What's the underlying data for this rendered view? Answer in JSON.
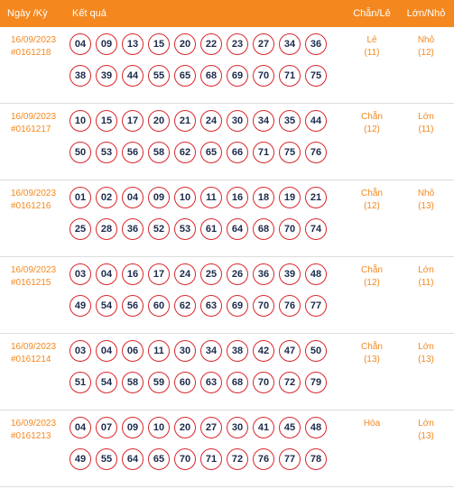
{
  "header": {
    "date_label": "Ngày /Kỳ",
    "result_label": "Kết quả",
    "chan_le_label": "Chẵn/Lẻ",
    "lon_nho_label": "Lớn/Nhỏ"
  },
  "rows": [
    {
      "date": "16/09/2023",
      "period": "#0161218",
      "numbers_top": [
        "04",
        "09",
        "13",
        "15",
        "20",
        "22",
        "23",
        "27",
        "34",
        "36"
      ],
      "numbers_bottom": [
        "38",
        "39",
        "44",
        "55",
        "65",
        "68",
        "69",
        "70",
        "71",
        "75"
      ],
      "chan_le": "Lẻ",
      "chan_le_count": "(11)",
      "lon_nho": "Nhỏ",
      "lon_nho_count": "(12)"
    },
    {
      "date": "16/09/2023",
      "period": "#0161217",
      "numbers_top": [
        "10",
        "15",
        "17",
        "20",
        "21",
        "24",
        "30",
        "34",
        "35",
        "44"
      ],
      "numbers_bottom": [
        "50",
        "53",
        "56",
        "58",
        "62",
        "65",
        "66",
        "71",
        "75",
        "76"
      ],
      "chan_le": "Chẵn",
      "chan_le_count": "(12)",
      "lon_nho": "Lớn",
      "lon_nho_count": "(11)"
    },
    {
      "date": "16/09/2023",
      "period": "#0161216",
      "numbers_top": [
        "01",
        "02",
        "04",
        "09",
        "10",
        "11",
        "16",
        "18",
        "19",
        "21"
      ],
      "numbers_bottom": [
        "25",
        "28",
        "36",
        "52",
        "53",
        "61",
        "64",
        "68",
        "70",
        "74"
      ],
      "chan_le": "Chẵn",
      "chan_le_count": "(12)",
      "lon_nho": "Nhỏ",
      "lon_nho_count": "(13)"
    },
    {
      "date": "16/09/2023",
      "period": "#0161215",
      "numbers_top": [
        "03",
        "04",
        "16",
        "17",
        "24",
        "25",
        "26",
        "36",
        "39",
        "48"
      ],
      "numbers_bottom": [
        "49",
        "54",
        "56",
        "60",
        "62",
        "63",
        "69",
        "70",
        "76",
        "77"
      ],
      "chan_le": "Chẵn",
      "chan_le_count": "(12)",
      "lon_nho": "Lớn",
      "lon_nho_count": "(11)"
    },
    {
      "date": "16/09/2023",
      "period": "#0161214",
      "numbers_top": [
        "03",
        "04",
        "06",
        "11",
        "30",
        "34",
        "38",
        "42",
        "47",
        "50"
      ],
      "numbers_bottom": [
        "51",
        "54",
        "58",
        "59",
        "60",
        "63",
        "68",
        "70",
        "72",
        "79"
      ],
      "chan_le": "Chẵn",
      "chan_le_count": "(13)",
      "lon_nho": "Lớn",
      "lon_nho_count": "(13)"
    },
    {
      "date": "16/09/2023",
      "period": "#0161213",
      "numbers_top": [
        "04",
        "07",
        "09",
        "10",
        "20",
        "27",
        "30",
        "41",
        "45",
        "48"
      ],
      "numbers_bottom": [
        "49",
        "55",
        "64",
        "65",
        "70",
        "71",
        "72",
        "76",
        "77",
        "78"
      ],
      "chan_le": "Hòa",
      "chan_le_count": "",
      "lon_nho": "Lớn",
      "lon_nho_count": "(13)"
    }
  ]
}
